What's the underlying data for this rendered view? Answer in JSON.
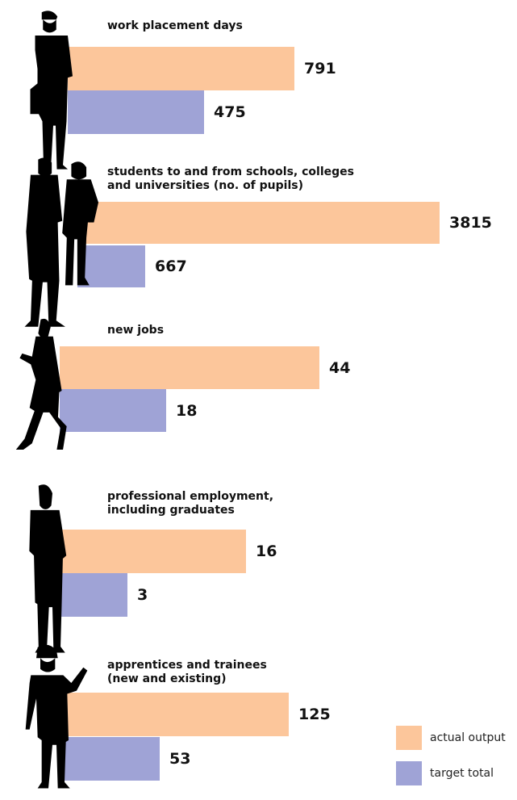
{
  "colors": {
    "actual": "#fcc69b",
    "target": "#9fa3d6",
    "silhouette": "#000000"
  },
  "legend": [
    {
      "label": "actual output",
      "color": "#fcc69b"
    },
    {
      "label": "target total",
      "color": "#9fa3d6"
    }
  ],
  "chart_data": {
    "type": "bar",
    "orientation": "horizontal",
    "categories": [
      "work placement days",
      "students to and from schools, colleges and universities (no. of pupils)",
      "new jobs",
      "professional employment, including graduates",
      "apprentices and trainees (new and existing)"
    ],
    "panels": [
      {
        "title_lines": [
          "work placement days"
        ],
        "actual": 791,
        "target": 475,
        "icon": "worker-with-hardhat-and-bag-icon"
      },
      {
        "title_lines": [
          "students to and from schools, colleges",
          "and universities (no. of pupils)"
        ],
        "actual": 3815,
        "target": 667,
        "icon": "two-students-icon"
      },
      {
        "title_lines": [
          "new jobs"
        ],
        "actual": 44,
        "target": 18,
        "icon": "businesswoman-icon"
      },
      {
        "title_lines": [
          "professional employment,",
          "including graduates"
        ],
        "actual": 16,
        "target": 3,
        "icon": "businessman-in-suit-icon"
      },
      {
        "title_lines": [
          "apprentices and trainees",
          "(new and existing)"
        ],
        "actual": 125,
        "target": 53,
        "icon": "apprentice-with-drill-icon"
      }
    ],
    "series": [
      {
        "name": "actual output",
        "values": [
          791,
          3815,
          44,
          16,
          125
        ]
      },
      {
        "name": "target total",
        "values": [
          475,
          667,
          18,
          3,
          53
        ]
      }
    ],
    "legend_position": "bottom-right",
    "grid": false
  }
}
